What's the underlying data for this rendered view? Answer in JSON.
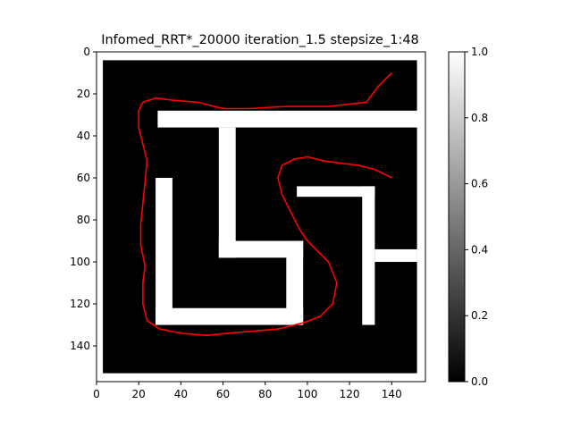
{
  "chart_data": {
    "type": "heatmap",
    "title": "Infomed_RRT*_20000 iteration_1.5 stepsize_1:48",
    "xlabel": "",
    "ylabel": "",
    "xlim": [
      0,
      156
    ],
    "ylim": [
      157,
      0
    ],
    "x_ticks": [
      0,
      20,
      40,
      60,
      80,
      100,
      120,
      140
    ],
    "y_ticks": [
      0,
      20,
      40,
      60,
      80,
      100,
      120,
      140
    ],
    "colormap": "gray",
    "colorbar": {
      "range": [
        0.0,
        1.0
      ],
      "ticks": [
        "0.0",
        "0.2",
        "0.4",
        "0.6",
        "0.8",
        "1.0"
      ]
    },
    "colors": {
      "free_space": "#ffffff",
      "obstacle": "#000000",
      "path": "#ff0000"
    },
    "obstacle_cells": [
      {
        "x0": 3,
        "y0": 4,
        "x1": 152,
        "y1": 153,
        "value": 0
      },
      {
        "x0": 29,
        "y0": 28,
        "x1": 156,
        "y1": 36,
        "value": 1
      },
      {
        "x0": 58,
        "y0": 36,
        "x1": 66,
        "y1": 98,
        "value": 1
      },
      {
        "x0": 58,
        "y0": 90,
        "x1": 98,
        "y1": 98,
        "value": 1
      },
      {
        "x0": 90,
        "y0": 90,
        "x1": 98,
        "y1": 130,
        "value": 1
      },
      {
        "x0": 28,
        "y0": 60,
        "x1": 36,
        "y1": 130,
        "value": 1
      },
      {
        "x0": 28,
        "y0": 122,
        "x1": 98,
        "y1": 130,
        "value": 1
      },
      {
        "x0": 95,
        "y0": 64,
        "x1": 132,
        "y1": 69,
        "value": 1
      },
      {
        "x0": 126,
        "y0": 64,
        "x1": 132,
        "y1": 130,
        "value": 1
      },
      {
        "x0": 132,
        "y0": 94,
        "x1": 152,
        "y1": 100,
        "value": 1
      }
    ],
    "series": [
      {
        "points": [
          [
            140,
            10
          ],
          [
            134,
            16
          ],
          [
            128,
            24
          ],
          [
            110,
            26
          ],
          [
            90,
            26
          ],
          [
            72,
            27
          ],
          [
            60,
            27
          ],
          [
            48,
            24
          ],
          [
            36,
            23
          ],
          [
            28,
            22
          ],
          [
            22,
            24
          ],
          [
            20,
            28
          ],
          [
            20,
            36
          ],
          [
            22,
            44
          ],
          [
            24,
            52
          ],
          [
            23,
            62
          ],
          [
            22,
            72
          ],
          [
            21,
            82
          ],
          [
            21,
            92
          ],
          [
            23,
            102
          ],
          [
            22,
            110
          ],
          [
            22,
            120
          ],
          [
            24,
            128
          ],
          [
            30,
            132
          ],
          [
            40,
            134
          ],
          [
            52,
            135
          ],
          [
            62,
            134
          ],
          [
            74,
            133
          ],
          [
            86,
            132
          ],
          [
            98,
            129
          ],
          [
            106,
            126
          ],
          [
            112,
            120
          ],
          [
            114,
            110
          ],
          [
            110,
            100
          ],
          [
            104,
            94
          ],
          [
            100,
            90
          ],
          [
            96,
            84
          ],
          [
            92,
            76
          ],
          [
            88,
            68
          ],
          [
            86,
            60
          ],
          [
            88,
            54
          ],
          [
            94,
            51
          ],
          [
            100,
            50
          ],
          [
            108,
            52
          ],
          [
            116,
            53
          ],
          [
            124,
            54
          ],
          [
            132,
            56
          ],
          [
            140,
            60
          ]
        ]
      }
    ]
  }
}
